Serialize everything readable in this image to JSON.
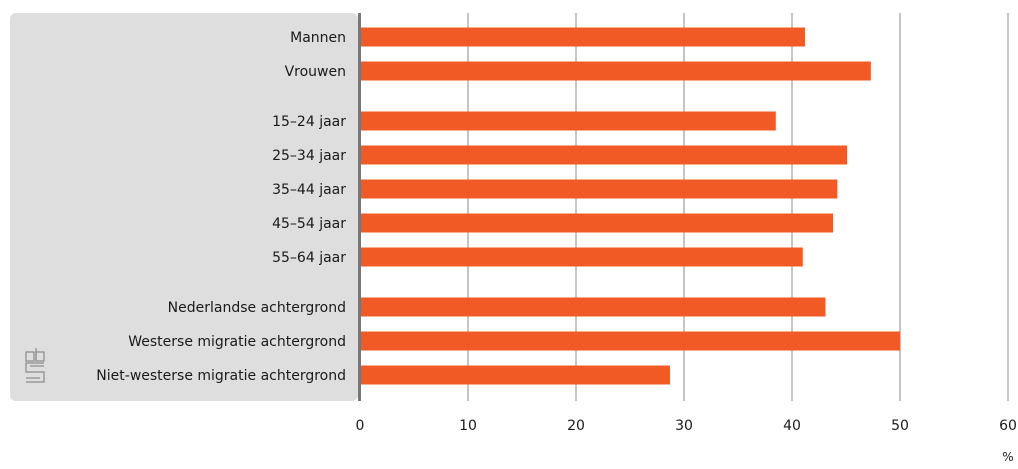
{
  "chart_data": {
    "type": "bar",
    "orientation": "horizontal",
    "groups": [
      [
        "Mannen",
        "Vrouwen"
      ],
      [
        "15–24 jaar",
        "25–34 jaar",
        "35–44 jaar",
        "45–54 jaar",
        "55–64 jaar"
      ],
      [
        "Nederlandse achtergrond",
        "Westerse migratie achtergrond",
        "Niet-westerse migratie achtergrond"
      ]
    ],
    "categories": [
      "Mannen",
      "Vrouwen",
      "15–24 jaar",
      "25–34 jaar",
      "35–44 jaar",
      "45–54 jaar",
      "55–64 jaar",
      "Nederlandse achtergrond",
      "Westerse migratie achtergrond",
      "Niet-westerse migratie achtergrond"
    ],
    "values": [
      41.2,
      47.3,
      38.5,
      45.1,
      44.2,
      43.8,
      41.0,
      43.1,
      50.0,
      28.7
    ],
    "xlim": [
      0,
      60
    ],
    "xticks": [
      0,
      10,
      20,
      30,
      40,
      50,
      60
    ],
    "unit": "%",
    "grid": true,
    "bar_color": "#f15a24",
    "label_panel_color": "#dedede",
    "logo": "cbs-logo"
  }
}
